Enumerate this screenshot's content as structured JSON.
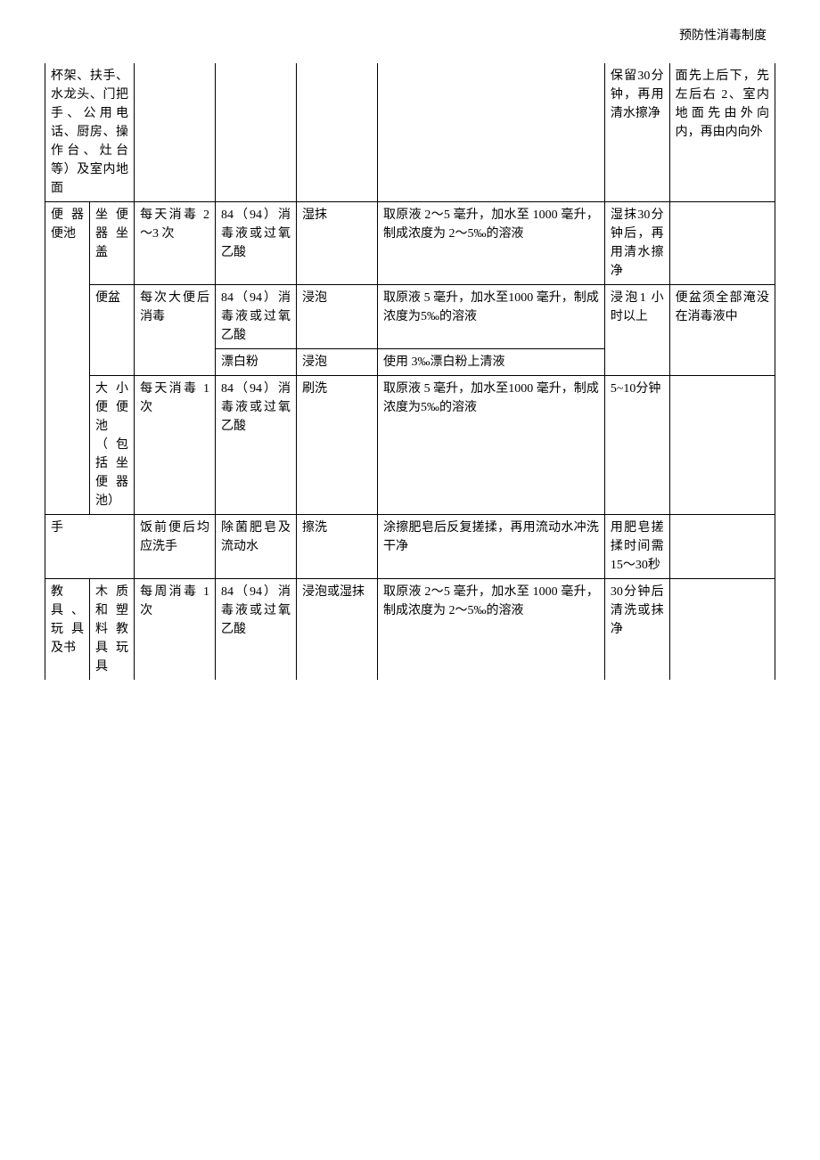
{
  "header": "预防性消毒制度",
  "rows": [
    {
      "c1": "杯架、扶手、水龙头、门把手、公用电话、厨房、操作台、灶台等）及室内地面",
      "c2": "",
      "c3": "",
      "c4": "",
      "c5": "",
      "c6": "",
      "c7": "保留30分钟，再用清水擦净",
      "c8": "面先上后下，先左后右 2、室内地面先由外向内，再由内向外",
      "span12": true,
      "topNone": true
    },
    {
      "c1": "便器便池",
      "c2": "坐便器坐盖",
      "c3": "每天消毒 2～3 次",
      "c4": "84（94）消毒液或过氧乙酸",
      "c5": "湿抹",
      "c6": "取原液 2～5 毫升，加水至 1000 毫升，制成浓度为 2～5‰的溶液",
      "c7": "湿抹30分钟后，再用清水擦净",
      "c8": "",
      "c1rowspan": 4
    },
    {
      "c2": "便盆",
      "c3": "每次大便后消毒",
      "c4": "84（94）消毒液或过氧乙酸",
      "c5": "浸泡",
      "c6": "取原液 5 毫升，加水至1000 毫升，制成浓度为5‰的溶液",
      "c7": "浸泡1 小时以上",
      "c8": "便盆须全部淹没在消毒液中",
      "c2rowspan": 2,
      "c3rowspan": 2,
      "c7rowspan": 2,
      "c8rowspan": 2
    },
    {
      "c4": "漂白粉",
      "c5": "浸泡",
      "c6": "使用 3‰漂白粉上清液"
    },
    {
      "c2": "大小便便池（包括坐便器池）",
      "c3": "每天消毒 1 次",
      "c4": "84（94）消毒液或过氧乙酸",
      "c5": "刷洗",
      "c6": "取原液 5 毫升，加水至1000 毫升，制成浓度为5‰的溶液",
      "c7": "5~10分钟",
      "c8": ""
    },
    {
      "c1": "手",
      "c2": "",
      "c3": "饭前便后均应洗手",
      "c4": "除菌肥皂及流动水",
      "c5": "擦洗",
      "c6": "涂擦肥皂后反复搓揉，再用流动水冲洗干净",
      "c7": "用肥皂搓揉时间需15～30秒",
      "c8": "",
      "span12": true
    },
    {
      "c1": "教具、玩具及书",
      "c2": "木质和塑料教具玩具",
      "c3": "每周消毒 1 次",
      "c4": "84（94）消毒液或过氧乙酸",
      "c5": "浸泡或湿抹",
      "c6": "取原液 2～5 毫升，加水至 1000 毫升，制成浓度为 2～5‰的溶液",
      "c7": "30分钟后清洗或抹净",
      "c8": "",
      "bottomNone": true
    }
  ]
}
